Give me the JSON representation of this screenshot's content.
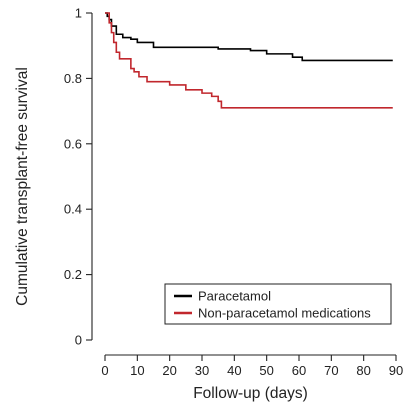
{
  "chart_data": {
    "type": "line",
    "step": true,
    "xlabel": "Follow-up (days)",
    "ylabel": "Cumulative transplant-free survival",
    "xlim": [
      0,
      90
    ],
    "ylim": [
      0,
      1
    ],
    "xticks": [
      0,
      10,
      20,
      30,
      40,
      50,
      60,
      70,
      80,
      90
    ],
    "yticks": [
      0,
      0.2,
      0.4,
      0.6,
      0.8,
      1
    ],
    "ytick_labels": [
      "0",
      "0.2",
      "0.4",
      "0.6",
      "0.8",
      "1"
    ],
    "grid": false,
    "legend_position": "bottom-right",
    "series": [
      {
        "name": "Paracetamol",
        "color": "#000000",
        "x": [
          0,
          0.7,
          1.3,
          2,
          3.5,
          5.5,
          8,
          10,
          15,
          35,
          45,
          50,
          58,
          61,
          89
        ],
        "y": [
          1.0,
          0.99,
          0.98,
          0.96,
          0.935,
          0.925,
          0.92,
          0.91,
          0.895,
          0.89,
          0.885,
          0.875,
          0.865,
          0.855,
          0.855
        ]
      },
      {
        "name": "Non-paracetamol medications",
        "color": "#c1272d",
        "x": [
          0,
          1.3,
          2,
          2.7,
          3.5,
          4.5,
          8,
          9,
          10.5,
          13,
          20,
          25,
          30,
          33,
          35,
          36,
          89
        ],
        "y": [
          1.0,
          0.97,
          0.94,
          0.91,
          0.88,
          0.86,
          0.83,
          0.82,
          0.805,
          0.79,
          0.78,
          0.765,
          0.755,
          0.745,
          0.73,
          0.71,
          0.71
        ]
      }
    ]
  }
}
